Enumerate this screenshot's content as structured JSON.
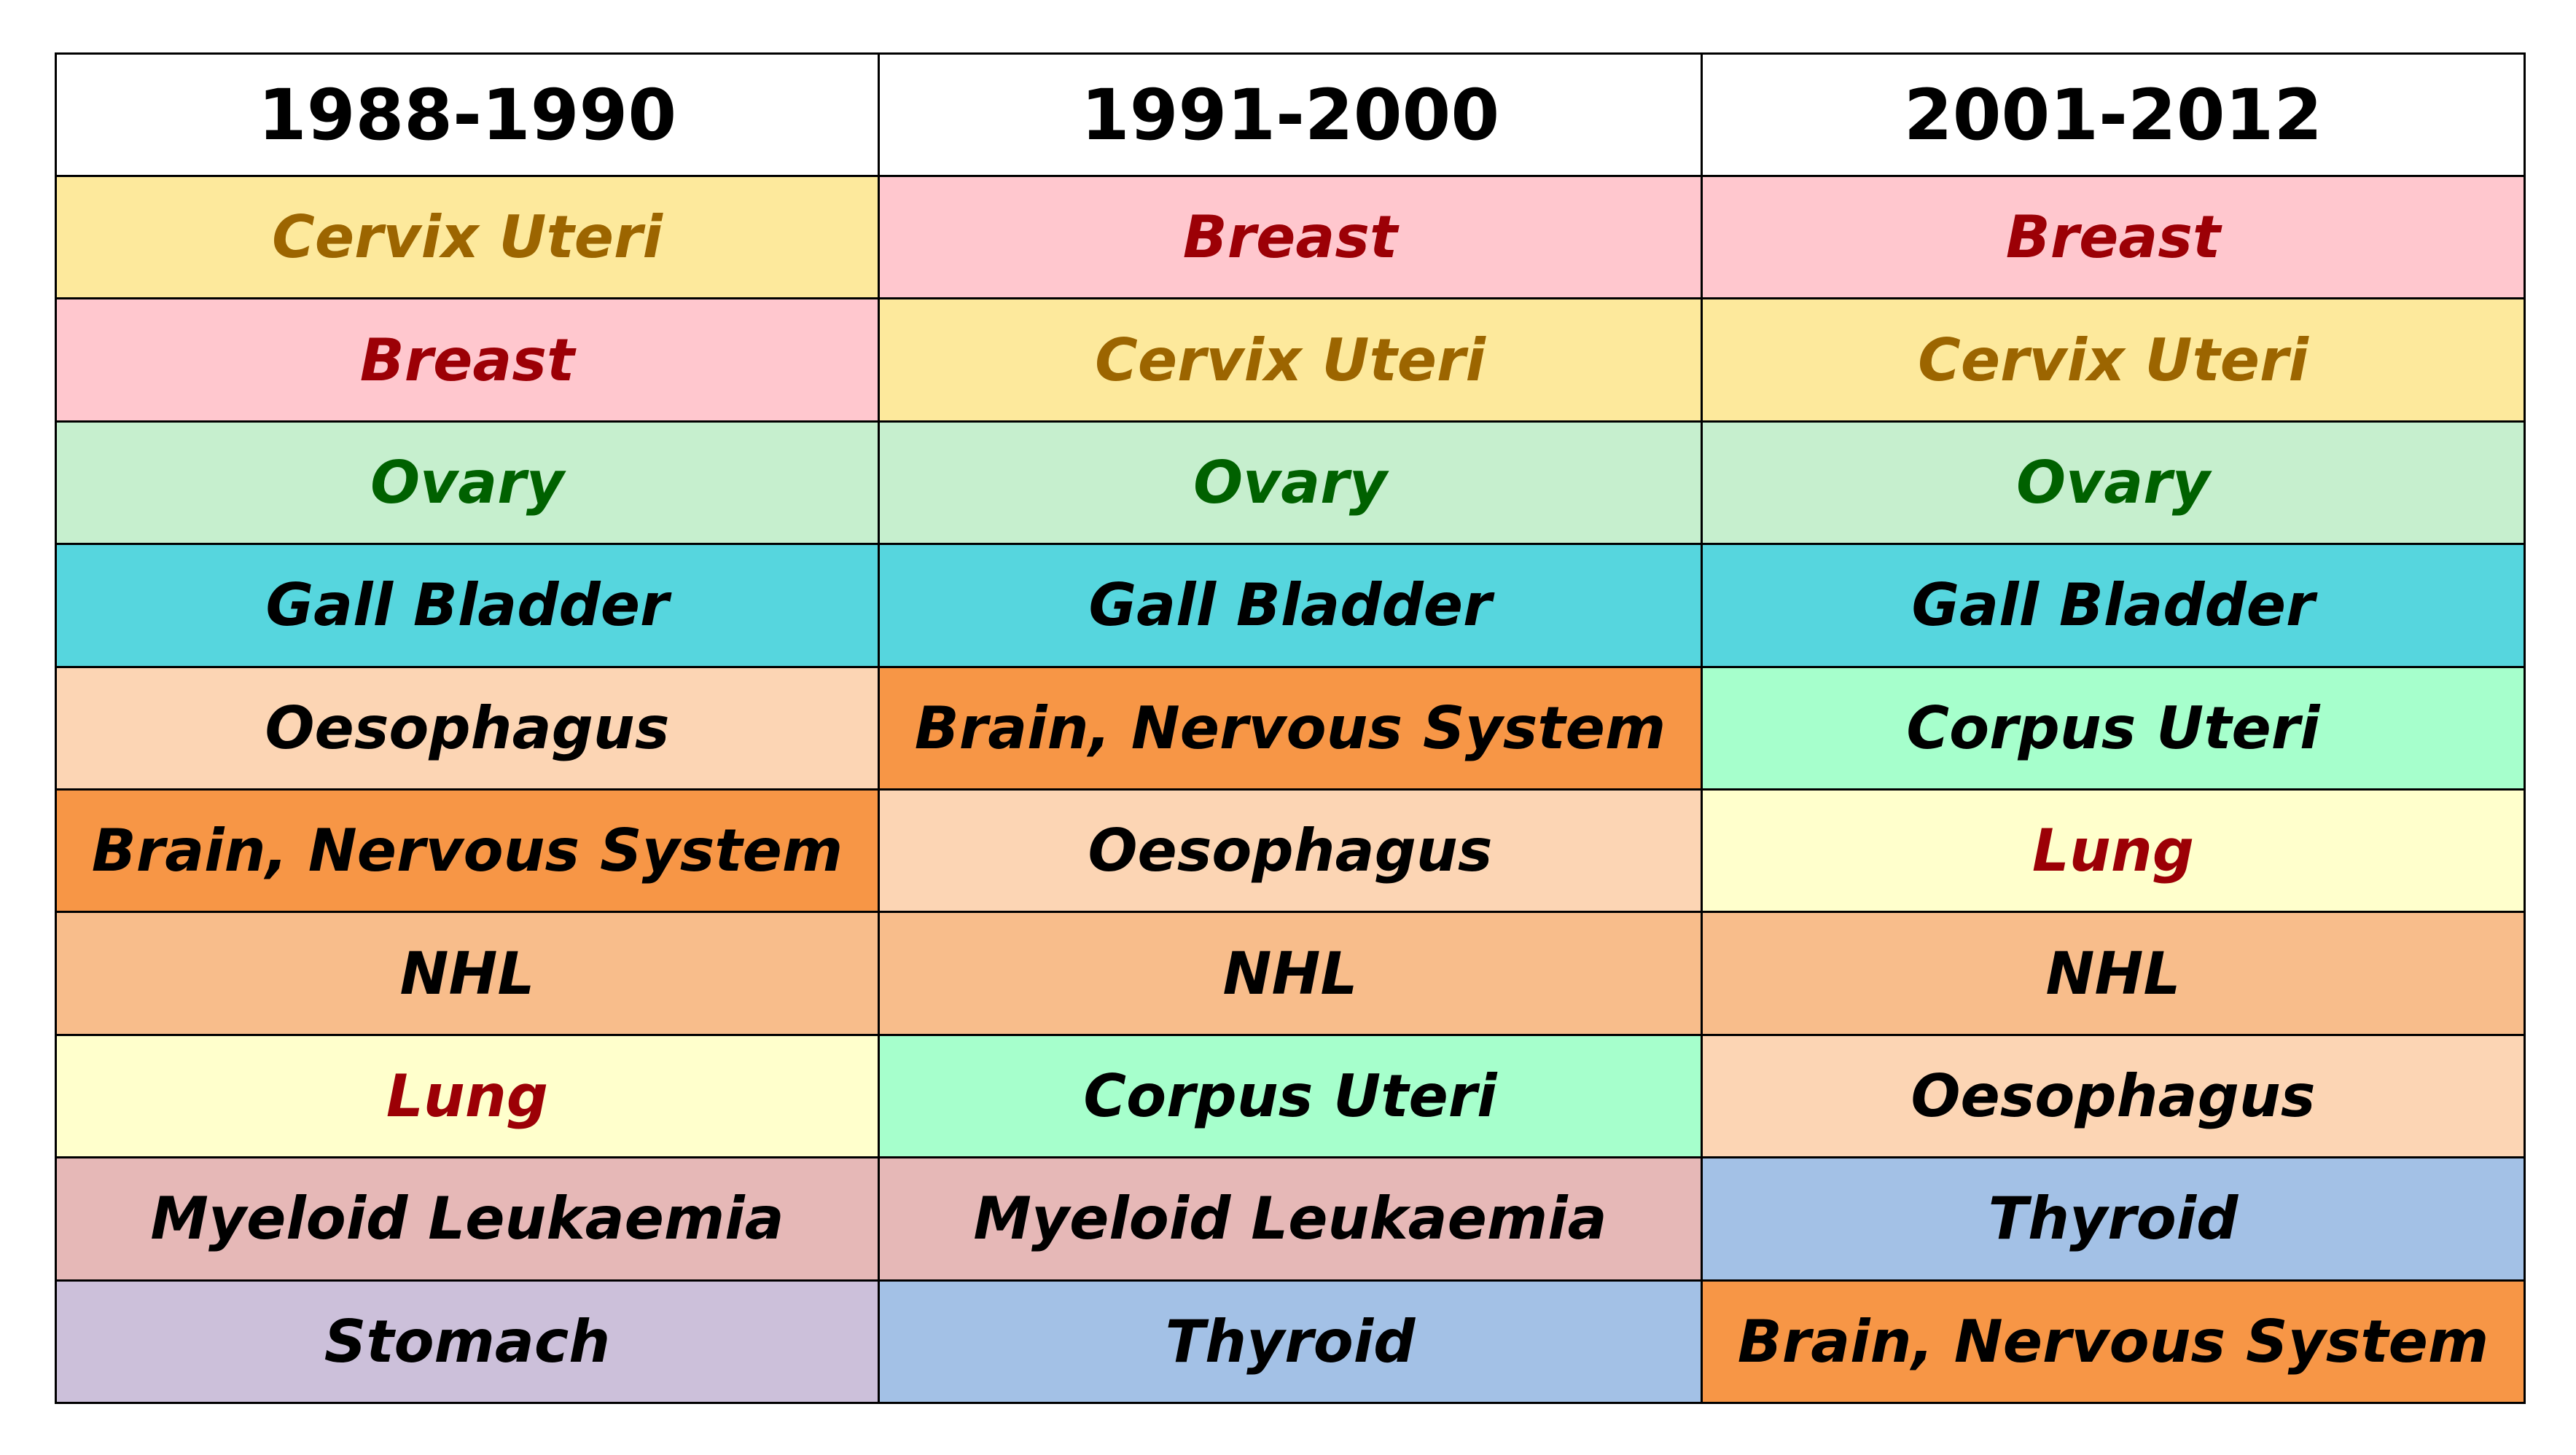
{
  "table": {
    "headers": [
      "1988-1990",
      "1991-2000",
      "2001-2012"
    ],
    "rows": [
      [
        {
          "label": "Cervix Uteri",
          "bg": "#FDE99C",
          "color": "#9C6500"
        },
        {
          "label": "Breast",
          "bg": "#FFC7CE",
          "color": "#9C0006"
        },
        {
          "label": "Breast",
          "bg": "#FFC7CE",
          "color": "#9C0006"
        }
      ],
      [
        {
          "label": "Breast",
          "bg": "#FFC7CE",
          "color": "#9C0006"
        },
        {
          "label": "Cervix Uteri",
          "bg": "#FDE99C",
          "color": "#9C6500"
        },
        {
          "label": "Cervix Uteri",
          "bg": "#FDE99C",
          "color": "#9C6500"
        }
      ],
      [
        {
          "label": "Ovary",
          "bg": "#C6EFCE",
          "color": "#006100"
        },
        {
          "label": "Ovary",
          "bg": "#C6EFCE",
          "color": "#006100"
        },
        {
          "label": "Ovary",
          "bg": "#C6EFCE",
          "color": "#006100"
        }
      ],
      [
        {
          "label": "Gall Bladder",
          "bg": "#56D6DE",
          "color": "#000000"
        },
        {
          "label": "Gall Bladder",
          "bg": "#56D6DE",
          "color": "#000000"
        },
        {
          "label": "Gall Bladder",
          "bg": "#56D6DE",
          "color": "#000000"
        }
      ],
      [
        {
          "label": "Oesophagus",
          "bg": "#FCD5B4",
          "color": "#000000"
        },
        {
          "label": "Brain, Nervous System",
          "bg": "#F79646",
          "color": "#000000"
        },
        {
          "label": "Corpus Uteri",
          "bg": "#A6FFCC",
          "color": "#000000"
        }
      ],
      [
        {
          "label": "Brain, Nervous System",
          "bg": "#F79646",
          "color": "#000000"
        },
        {
          "label": "Oesophagus",
          "bg": "#FCD5B4",
          "color": "#000000"
        },
        {
          "label": "Lung",
          "bg": "#FFFFCC",
          "color": "#9C0006"
        }
      ],
      [
        {
          "label": "NHL",
          "bg": "#F8BD8B",
          "color": "#000000"
        },
        {
          "label": "NHL",
          "bg": "#F8BD8B",
          "color": "#000000"
        },
        {
          "label": "NHL",
          "bg": "#F8BD8B",
          "color": "#000000"
        }
      ],
      [
        {
          "label": "Lung",
          "bg": "#FFFFCC",
          "color": "#9C0006"
        },
        {
          "label": "Corpus Uteri",
          "bg": "#A6FFCC",
          "color": "#000000"
        },
        {
          "label": "Oesophagus",
          "bg": "#FCD5B4",
          "color": "#000000"
        }
      ],
      [
        {
          "label": "Myeloid Leukaemia",
          "bg": "#E6B8B7",
          "color": "#000000"
        },
        {
          "label": "Myeloid Leukaemia",
          "bg": "#E6B8B7",
          "color": "#000000"
        },
        {
          "label": "Thyroid",
          "bg": "#A3C1E6",
          "color": "#000000"
        }
      ],
      [
        {
          "label": "Stomach",
          "bg": "#CCC0DA",
          "color": "#000000"
        },
        {
          "label": "Thyroid",
          "bg": "#A3C1E6",
          "color": "#000000"
        },
        {
          "label": "Brain, Nervous System",
          "bg": "#F79646",
          "color": "#000000"
        }
      ]
    ]
  }
}
